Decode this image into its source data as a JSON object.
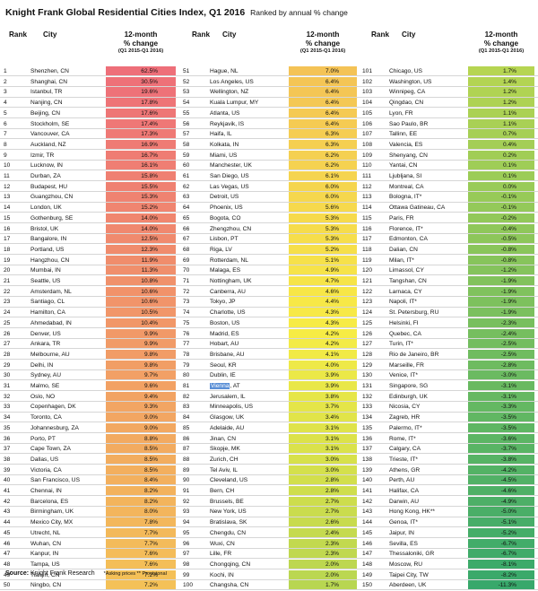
{
  "title": "Knight Frank Global Residential Cities Index, Q1 2016",
  "subtitle": "Ranked by annual % change",
  "columns": {
    "rank": "Rank",
    "city": "City",
    "change_l1": "12-month",
    "change_l2": "% change",
    "change_l3": "(Q1 2015-Q1 2016)"
  },
  "footer": {
    "source_label": "Source:",
    "source": "Knight Frank Research",
    "notes": "*Asking prices  ** Provisional"
  },
  "colors": {
    "red": "#ee6f79",
    "yellow": "#f7ec45",
    "green": "#38a86b",
    "highlight": "#5a8fd6",
    "separator": "#d6d6d6"
  },
  "chart_data": {
    "type": "table",
    "title": "Knight Frank Global Residential Cities Index, Q1 2016",
    "subtitle": "Ranked by annual % change",
    "rows": [
      {
        "rank": 1,
        "city": "Shenzhen, CN",
        "value": "62.5%"
      },
      {
        "rank": 2,
        "city": "Shanghai, CN",
        "value": "30.5%"
      },
      {
        "rank": 3,
        "city": "Istanbul, TR",
        "value": "19.6%"
      },
      {
        "rank": 4,
        "city": "Nanjing, CN",
        "value": "17.8%"
      },
      {
        "rank": 5,
        "city": "Beijing, CN",
        "value": "17.6%"
      },
      {
        "rank": 6,
        "city": "Stockholm, SE",
        "value": "17.4%"
      },
      {
        "rank": 7,
        "city": "Vancouver, CA",
        "value": "17.3%"
      },
      {
        "rank": 8,
        "city": "Auckland, NZ",
        "value": "16.9%"
      },
      {
        "rank": 9,
        "city": "Izmir, TR",
        "value": "16.7%"
      },
      {
        "rank": 10,
        "city": "Lucknow, IN",
        "value": "16.1%"
      },
      {
        "rank": 11,
        "city": "Durban, ZA",
        "value": "15.8%"
      },
      {
        "rank": 12,
        "city": "Budapest, HU",
        "value": "15.5%"
      },
      {
        "rank": 13,
        "city": "Guangzhou, CN",
        "value": "15.3%"
      },
      {
        "rank": 14,
        "city": "London, UK",
        "value": "15.2%"
      },
      {
        "rank": 15,
        "city": "Gothenburg, SE",
        "value": "14.0%"
      },
      {
        "rank": 16,
        "city": "Bristol, UK",
        "value": "14.0%"
      },
      {
        "rank": 17,
        "city": "Bangalore, IN",
        "value": "12.5%"
      },
      {
        "rank": 18,
        "city": "Portland, US",
        "value": "12.3%"
      },
      {
        "rank": 19,
        "city": "Hangzhou, CN",
        "value": "11.9%"
      },
      {
        "rank": 20,
        "city": "Mumbai, IN",
        "value": "11.3%"
      },
      {
        "rank": 21,
        "city": "Seattle, US",
        "value": "10.8%"
      },
      {
        "rank": 22,
        "city": "Amsterdam, NL",
        "value": "10.6%"
      },
      {
        "rank": 23,
        "city": "Santiago, CL",
        "value": "10.6%"
      },
      {
        "rank": 24,
        "city": "Hamilton, CA",
        "value": "10.5%"
      },
      {
        "rank": 25,
        "city": "Ahmedabad, IN",
        "value": "10.4%"
      },
      {
        "rank": 26,
        "city": "Denver, US",
        "value": "9.9%"
      },
      {
        "rank": 27,
        "city": "Ankara, TR",
        "value": "9.9%"
      },
      {
        "rank": 28,
        "city": "Melbourne, AU",
        "value": "9.8%"
      },
      {
        "rank": 29,
        "city": "Delhi, IN",
        "value": "9.8%"
      },
      {
        "rank": 30,
        "city": "Sydney, AU",
        "value": "9.7%"
      },
      {
        "rank": 31,
        "city": "Malmo, SE",
        "value": "9.6%"
      },
      {
        "rank": 32,
        "city": "Oslo, NO",
        "value": "9.4%"
      },
      {
        "rank": 33,
        "city": "Copenhagen, DK",
        "value": "9.3%"
      },
      {
        "rank": 34,
        "city": "Toronto, CA",
        "value": "9.0%"
      },
      {
        "rank": 35,
        "city": "Johannesburg, ZA",
        "value": "9.0%"
      },
      {
        "rank": 36,
        "city": "Porto, PT",
        "value": "8.8%"
      },
      {
        "rank": 37,
        "city": "Cape Town, ZA",
        "value": "8.5%"
      },
      {
        "rank": 38,
        "city": "Dallas, US",
        "value": "8.5%"
      },
      {
        "rank": 39,
        "city": "Victoria, CA",
        "value": "8.5%"
      },
      {
        "rank": 40,
        "city": "San Francisco, US",
        "value": "8.4%"
      },
      {
        "rank": 41,
        "city": "Chennai, IN",
        "value": "8.2%"
      },
      {
        "rank": 42,
        "city": "Barcelona, ES",
        "value": "8.2%"
      },
      {
        "rank": 43,
        "city": "Birmingham, UK",
        "value": "8.0%"
      },
      {
        "rank": 44,
        "city": "Mexico City, MX",
        "value": "7.8%"
      },
      {
        "rank": 45,
        "city": "Utrecht, NL",
        "value": "7.7%"
      },
      {
        "rank": 46,
        "city": "Wuhan, CN",
        "value": "7.7%"
      },
      {
        "rank": 47,
        "city": "Kanpur, IN",
        "value": "7.6%"
      },
      {
        "rank": 48,
        "city": "Tampa, US",
        "value": "7.6%"
      },
      {
        "rank": 49,
        "city": "Tianjin, CN",
        "value": "7.2%"
      },
      {
        "rank": 50,
        "city": "Ningbo, CN",
        "value": "7.2%"
      },
      {
        "rank": 51,
        "city": "Hague, NL",
        "value": "7.0%"
      },
      {
        "rank": 52,
        "city": "Los Angeles, US",
        "value": "6.4%"
      },
      {
        "rank": 53,
        "city": "Wellington, NZ",
        "value": "6.4%"
      },
      {
        "rank": 54,
        "city": "Kuala Lumpur, MY",
        "value": "6.4%"
      },
      {
        "rank": 55,
        "city": "Atlanta, US",
        "value": "6.4%"
      },
      {
        "rank": 56,
        "city": "Reykjavik, IS",
        "value": "6.4%"
      },
      {
        "rank": 57,
        "city": "Haifa, IL",
        "value": "6.3%"
      },
      {
        "rank": 58,
        "city": "Kolkata, IN",
        "value": "6.3%"
      },
      {
        "rank": 59,
        "city": "Miami, US",
        "value": "6.2%"
      },
      {
        "rank": 60,
        "city": "Manchester, UK",
        "value": "6.2%"
      },
      {
        "rank": 61,
        "city": "San Diego, US",
        "value": "6.1%"
      },
      {
        "rank": 62,
        "city": "Las Vegas, US",
        "value": "6.0%"
      },
      {
        "rank": 63,
        "city": "Detroit, US",
        "value": "6.0%"
      },
      {
        "rank": 64,
        "city": "Phoenix, US",
        "value": "5.6%"
      },
      {
        "rank": 65,
        "city": "Bogota, CO",
        "value": "5.3%"
      },
      {
        "rank": 66,
        "city": "Zhengzhou, CN",
        "value": "5.3%"
      },
      {
        "rank": 67,
        "city": "Lisbon, PT",
        "value": "5.3%"
      },
      {
        "rank": 68,
        "city": "Riga, LV",
        "value": "5.2%"
      },
      {
        "rank": 69,
        "city": "Rotterdam, NL",
        "value": "5.1%"
      },
      {
        "rank": 70,
        "city": "Malaga, ES",
        "value": "4.9%"
      },
      {
        "rank": 71,
        "city": "Nottingham, UK",
        "value": "4.7%"
      },
      {
        "rank": 72,
        "city": "Canberra, AU",
        "value": "4.6%"
      },
      {
        "rank": 73,
        "city": "Tokyo, JP",
        "value": "4.4%"
      },
      {
        "rank": 74,
        "city": "Charlotte, US",
        "value": "4.3%"
      },
      {
        "rank": 75,
        "city": "Boston, US",
        "value": "4.3%"
      },
      {
        "rank": 76,
        "city": "Madrid, ES",
        "value": "4.2%"
      },
      {
        "rank": 77,
        "city": "Hobart, AU",
        "value": "4.2%"
      },
      {
        "rank": 78,
        "city": "Brisbane, AU",
        "value": "4.1%"
      },
      {
        "rank": 79,
        "city": "Seoul, KR",
        "value": "4.0%"
      },
      {
        "rank": 80,
        "city": "Dublin, IE",
        "value": "3.9%"
      },
      {
        "rank": 81,
        "city": "Vienna",
        "city_suffix": ", AT",
        "highlight": true,
        "value": "3.9%"
      },
      {
        "rank": 82,
        "city": "Jerusalem, IL",
        "value": "3.8%"
      },
      {
        "rank": 83,
        "city": "Minneapolis, US",
        "value": "3.7%"
      },
      {
        "rank": 84,
        "city": "Glasgow, UK",
        "value": "3.4%"
      },
      {
        "rank": 85,
        "city": "Adelaide, AU",
        "value": "3.1%"
      },
      {
        "rank": 86,
        "city": "Jinan, CN",
        "value": "3.1%"
      },
      {
        "rank": 87,
        "city": "Skopje, MK",
        "value": "3.1%"
      },
      {
        "rank": 88,
        "city": "Zurich, CH",
        "value": "3.0%"
      },
      {
        "rank": 89,
        "city": "Tel Aviv, IL",
        "value": "3.0%"
      },
      {
        "rank": 90,
        "city": "Cleveland, US",
        "value": "2.8%"
      },
      {
        "rank": 91,
        "city": "Bern, CH",
        "value": "2.8%"
      },
      {
        "rank": 92,
        "city": "Brussels, BE",
        "value": "2.7%"
      },
      {
        "rank": 93,
        "city": "New York, US",
        "value": "2.7%"
      },
      {
        "rank": 94,
        "city": "Bratislava, SK",
        "value": "2.6%"
      },
      {
        "rank": 95,
        "city": "Chengdu, CN",
        "value": "2.4%"
      },
      {
        "rank": 96,
        "city": "Wuxi, CN",
        "value": "2.3%"
      },
      {
        "rank": 97,
        "city": "Lille, FR",
        "value": "2.3%"
      },
      {
        "rank": 98,
        "city": "Chongqing, CN",
        "value": "2.0%"
      },
      {
        "rank": 99,
        "city": "Kochi, IN",
        "value": "2.0%"
      },
      {
        "rank": 100,
        "city": "Changsha, CN",
        "value": "1.7%"
      },
      {
        "rank": 101,
        "city": "Chicago, US",
        "value": "1.7%"
      },
      {
        "rank": 102,
        "city": "Washington, US",
        "value": "1.4%"
      },
      {
        "rank": 103,
        "city": "Winnipeg, CA",
        "value": "1.2%"
      },
      {
        "rank": 104,
        "city": "Qingdao, CN",
        "value": "1.2%"
      },
      {
        "rank": 105,
        "city": "Lyon, FR",
        "value": "1.1%"
      },
      {
        "rank": 106,
        "city": "Sao Paulo, BR",
        "value": "1.1%"
      },
      {
        "rank": 107,
        "city": "Tallinn, EE",
        "value": "0.7%"
      },
      {
        "rank": 108,
        "city": "Valencia, ES",
        "value": "0.4%"
      },
      {
        "rank": 109,
        "city": "Shenyang, CN",
        "value": "0.2%"
      },
      {
        "rank": 110,
        "city": "Yantai, CN",
        "value": "0.1%"
      },
      {
        "rank": 111,
        "city": "Ljubljana, SI",
        "value": "0.1%"
      },
      {
        "rank": 112,
        "city": "Montreal, CA",
        "value": "0.0%"
      },
      {
        "rank": 113,
        "city": "Bologna, IT*",
        "value": "-0.1%"
      },
      {
        "rank": 114,
        "city": "Ottawa Gatineau, CA",
        "value": "-0.1%"
      },
      {
        "rank": 115,
        "city": "Paris, FR",
        "value": "-0.2%"
      },
      {
        "rank": 116,
        "city": "Florence, IT*",
        "value": "-0.4%"
      },
      {
        "rank": 117,
        "city": "Edmonton, CA",
        "value": "-0.5%"
      },
      {
        "rank": 118,
        "city": "Dalian, CN",
        "value": "-0.8%"
      },
      {
        "rank": 119,
        "city": "Milan, IT*",
        "value": "-0.8%"
      },
      {
        "rank": 120,
        "city": "Limassol, CY",
        "value": "-1.2%"
      },
      {
        "rank": 121,
        "city": "Tangshan, CN",
        "value": "-1.9%"
      },
      {
        "rank": 122,
        "city": "Larnaca, CY",
        "value": "-1.9%"
      },
      {
        "rank": 123,
        "city": "Napoli, IT*",
        "value": "-1.9%"
      },
      {
        "rank": 124,
        "city": "St. Petersburg, RU",
        "value": "-1.9%"
      },
      {
        "rank": 125,
        "city": "Helsinki, FI",
        "value": "-2.3%"
      },
      {
        "rank": 126,
        "city": "Quebec, CA",
        "value": "-2.4%"
      },
      {
        "rank": 127,
        "city": "Turin, IT*",
        "value": "-2.5%"
      },
      {
        "rank": 128,
        "city": "Rio de Janeiro, BR",
        "value": "-2.5%"
      },
      {
        "rank": 129,
        "city": "Marseille, FR",
        "value": "-2.8%"
      },
      {
        "rank": 130,
        "city": "Venice, IT*",
        "value": "-3.0%"
      },
      {
        "rank": 131,
        "city": "Singapore, SG",
        "value": "-3.1%"
      },
      {
        "rank": 132,
        "city": "Edinburgh, UK",
        "value": "-3.1%"
      },
      {
        "rank": 133,
        "city": "Nicosia, CY",
        "value": "-3.3%"
      },
      {
        "rank": 134,
        "city": "Zagreb, HR",
        "value": "-3.5%"
      },
      {
        "rank": 135,
        "city": "Palermo, IT*",
        "value": "-3.5%"
      },
      {
        "rank": 136,
        "city": "Rome, IT*",
        "value": "-3.6%"
      },
      {
        "rank": 137,
        "city": "Calgary, CA",
        "value": "-3.7%"
      },
      {
        "rank": 138,
        "city": "Trieste, IT*",
        "value": "-3.8%"
      },
      {
        "rank": 139,
        "city": "Athens, GR",
        "value": "-4.2%"
      },
      {
        "rank": 140,
        "city": "Perth, AU",
        "value": "-4.5%"
      },
      {
        "rank": 141,
        "city": "Halifax, CA",
        "value": "-4.6%"
      },
      {
        "rank": 142,
        "city": "Darwin, AU",
        "value": "-4.9%"
      },
      {
        "rank": 143,
        "city": "Hong Kong, HK**",
        "value": "-5.0%"
      },
      {
        "rank": 144,
        "city": "Genoa, IT*",
        "value": "-5.1%"
      },
      {
        "rank": 145,
        "city": "Jaipur, IN",
        "value": "-5.2%"
      },
      {
        "rank": 146,
        "city": "Sevilla, ES",
        "value": "-6.7%"
      },
      {
        "rank": 147,
        "city": "Thessaloniki, GR",
        "value": "-6.7%"
      },
      {
        "rank": 148,
        "city": "Moscow, RU",
        "value": "-8.1%"
      },
      {
        "rank": 149,
        "city": "Taipei City, TW",
        "value": "-8.2%"
      },
      {
        "rank": 150,
        "city": "Aberdeen, UK",
        "value": "-11.3%"
      }
    ]
  }
}
